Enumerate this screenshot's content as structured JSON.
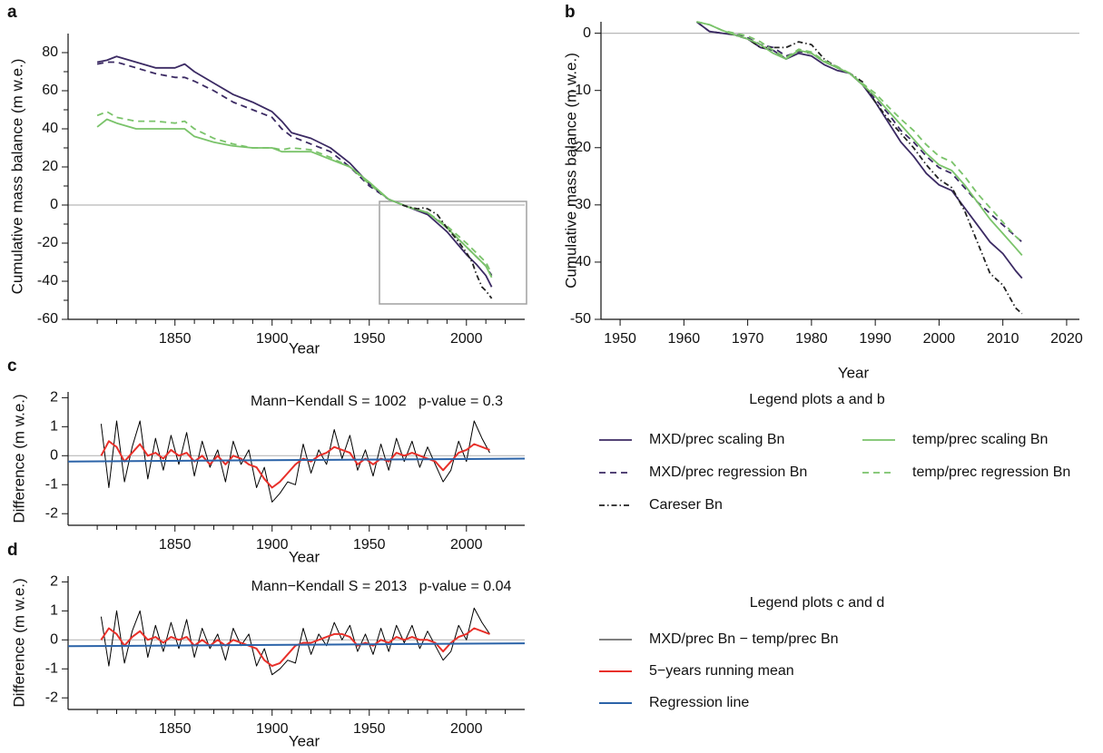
{
  "chart_data": [
    {
      "type": "line",
      "panel": "a",
      "xlabel": "Year",
      "ylabel": "Cumulative mass balance (m w.e.)",
      "xlim": [
        1795,
        2030
      ],
      "ylim": [
        -60,
        90
      ],
      "xticks": [
        1850,
        1900,
        1950,
        2000
      ],
      "xminorticks": [
        1810,
        1820,
        1830,
        1840,
        1860,
        1870,
        1880,
        1890,
        1910,
        1920,
        1930,
        1940,
        1960,
        1970,
        1980,
        1990,
        2010,
        2020
      ],
      "yticks": [
        -60,
        -40,
        -20,
        0,
        20,
        40,
        60,
        80
      ],
      "yminorticks": [
        -50,
        -30,
        -10,
        10,
        30,
        50,
        70
      ],
      "zero_line": true,
      "x": [
        1810,
        1815,
        1820,
        1830,
        1840,
        1850,
        1855,
        1860,
        1870,
        1880,
        1890,
        1900,
        1905,
        1910,
        1920,
        1930,
        1940,
        1950,
        1960,
        1970,
        1980,
        1990,
        2000,
        2005,
        2010,
        2013
      ],
      "series": [
        {
          "name": "MXD/prec scaling Bn",
          "color": "#3b2a63",
          "dash": "solid",
          "values": [
            75,
            76,
            78,
            75,
            72,
            72,
            74,
            70,
            64,
            58,
            54,
            49,
            44,
            38,
            35,
            30,
            22,
            11,
            3,
            -1,
            -5,
            -14,
            -26,
            -31,
            -37,
            -43
          ]
        },
        {
          "name": "MXD/prec regression Bn",
          "color": "#3b2a63",
          "dash": "dashed",
          "values": [
            74,
            75,
            75,
            72,
            69,
            67,
            67,
            65,
            60,
            54,
            50,
            46,
            40,
            36,
            32,
            28,
            20,
            10,
            3,
            -1,
            -4,
            -12,
            -22,
            -27,
            -32,
            -37
          ]
        },
        {
          "name": "temp/prec scaling Bn",
          "color": "#7ac36a",
          "dash": "solid",
          "values": [
            41,
            45,
            43,
            40,
            40,
            40,
            40,
            36,
            33,
            31,
            30,
            30,
            28,
            28,
            28,
            24,
            20,
            12,
            3,
            -1,
            -4,
            -12,
            -22,
            -27,
            -32,
            -38
          ]
        },
        {
          "name": "temp/prec regression Bn",
          "color": "#7ac36a",
          "dash": "dashed",
          "values": [
            47,
            49,
            46,
            44,
            44,
            43,
            44,
            40,
            35,
            32,
            30,
            30,
            29,
            30,
            29,
            25,
            20,
            11,
            3,
            -1,
            -4,
            -11,
            -20,
            -25,
            -30,
            -36
          ]
        },
        {
          "name": "Careser Bn",
          "color": "#222222",
          "dash": "dashdot",
          "x": [
            1967,
            1970,
            1975,
            1978,
            1980,
            1985,
            1990,
            1995,
            2000,
            2003,
            2005,
            2008,
            2010,
            2013
          ],
          "values": [
            0,
            -1,
            -2,
            -1.5,
            -2,
            -5,
            -12,
            -18,
            -25,
            -30,
            -36,
            -43,
            -45,
            -49
          ]
        }
      ]
    },
    {
      "type": "line",
      "panel": "b",
      "xlabel": "Year",
      "ylabel": "Cumulative mass balance (m w.e.)",
      "xlim": [
        1947,
        2022
      ],
      "ylim": [
        -50,
        2
      ],
      "xticks": [
        1950,
        1960,
        1970,
        1980,
        1990,
        2000,
        2010,
        2020
      ],
      "yticks": [
        -50,
        -40,
        -30,
        -20,
        -10,
        0
      ],
      "zero_line": true,
      "legend_title": "Legend plots a and b",
      "x": [
        1962,
        1964,
        1966,
        1968,
        1970,
        1972,
        1974,
        1976,
        1978,
        1980,
        1982,
        1984,
        1986,
        1988,
        1990,
        1992,
        1994,
        1996,
        1998,
        2000,
        2002,
        2004,
        2006,
        2008,
        2010,
        2012,
        2013
      ],
      "series": [
        {
          "name": "MXD/prec scaling Bn",
          "color": "#3b2a63",
          "dash": "solid",
          "values": [
            2,
            0.3,
            0,
            -0.3,
            -1,
            -2.5,
            -3,
            -4.5,
            -3.5,
            -4,
            -5.5,
            -6.5,
            -7,
            -9,
            -12,
            -15.5,
            -19,
            -21.5,
            -24.5,
            -26.5,
            -27.5,
            -30.5,
            -33.5,
            -36.5,
            -38.5,
            -41.5,
            -42.8
          ]
        },
        {
          "name": "MXD/prec regression Bn",
          "color": "#3b2a63",
          "dash": "dashed",
          "values": [
            2,
            0.3,
            0,
            -0.2,
            -0.8,
            -2,
            -2.5,
            -4,
            -3.2,
            -3.5,
            -5,
            -6,
            -7,
            -9,
            -11.5,
            -14,
            -17,
            -19,
            -21.5,
            -23.5,
            -24.5,
            -27,
            -29.5,
            -31.5,
            -33.5,
            -35.5,
            -36.5
          ]
        },
        {
          "name": "Careser Bn",
          "color": "#222222",
          "dash": "dashdot",
          "x": [
            1967,
            1970,
            1972,
            1974,
            1976,
            1978,
            1980,
            1982,
            1984,
            1986,
            1988,
            1990,
            1992,
            1994,
            1996,
            1998,
            2000,
            2002,
            2004,
            2006,
            2008,
            2010,
            2012,
            2013
          ],
          "values": [
            0,
            -1,
            -2.5,
            -2.5,
            -2.5,
            -1.5,
            -2,
            -4.5,
            -6,
            -7,
            -8.5,
            -12,
            -15,
            -17.5,
            -20,
            -23,
            -25.5,
            -27,
            -31,
            -36.5,
            -42,
            -44,
            -48,
            -49
          ]
        },
        {
          "name": "temp/prec scaling Bn",
          "color": "#7ac36a",
          "dash": "solid",
          "values": [
            2,
            1.5,
            0.5,
            -0.3,
            -1,
            -2,
            -3.5,
            -4.5,
            -3,
            -3.5,
            -5,
            -6,
            -7,
            -9,
            -11,
            -13.5,
            -16,
            -18.5,
            -21,
            -23,
            -24,
            -26.5,
            -29.5,
            -32.5,
            -35,
            -37.5,
            -38.8
          ]
        },
        {
          "name": "temp/prec regression Bn",
          "color": "#7ac36a",
          "dash": "dashed",
          "values": [
            2,
            1.5,
            0.5,
            0,
            -0.5,
            -1.5,
            -3,
            -4.3,
            -2.8,
            -3.3,
            -4.8,
            -5.8,
            -7,
            -8.8,
            -10.5,
            -12.8,
            -15,
            -17,
            -19.5,
            -21.5,
            -22.5,
            -25,
            -28,
            -30.5,
            -33,
            -35.5,
            -36.5
          ]
        }
      ]
    },
    {
      "type": "line",
      "panel": "c",
      "xlabel": "Year",
      "ylabel": "Difference (m w.e.)",
      "annotation": "Mann−Kendall S = 1002   p-value = 0.3",
      "xlim": [
        1795,
        2030
      ],
      "ylim": [
        -2.4,
        2.2
      ],
      "xticks": [
        1850,
        1900,
        1950,
        2000
      ],
      "xminorticks": [
        1810,
        1820,
        1830,
        1840,
        1860,
        1870,
        1880,
        1890,
        1910,
        1920,
        1930,
        1940,
        1960,
        1970,
        1980,
        1990,
        2010,
        2020
      ],
      "yticks": [
        -2,
        -1,
        0,
        1,
        2
      ],
      "zero_line": true,
      "x": [
        1812,
        1816,
        1820,
        1824,
        1828,
        1832,
        1836,
        1840,
        1844,
        1848,
        1852,
        1856,
        1860,
        1864,
        1868,
        1872,
        1876,
        1880,
        1884,
        1888,
        1892,
        1896,
        1900,
        1904,
        1908,
        1912,
        1916,
        1920,
        1924,
        1928,
        1932,
        1936,
        1940,
        1944,
        1948,
        1952,
        1956,
        1960,
        1964,
        1968,
        1972,
        1976,
        1980,
        1984,
        1988,
        1992,
        1996,
        2000,
        2004,
        2008,
        2012
      ],
      "series": [
        {
          "name": "MXD/prec Bn − temp/prec Bn",
          "color": "#000000",
          "dash": "solid",
          "width": 1,
          "values": [
            1.1,
            -1.1,
            1.2,
            -0.9,
            0.3,
            1.2,
            -0.8,
            0.6,
            -0.5,
            0.7,
            -0.3,
            0.8,
            -0.7,
            0.5,
            -0.4,
            0.2,
            -0.9,
            0.5,
            -0.3,
            0.2,
            -1.1,
            -0.4,
            -1.6,
            -1.3,
            -0.9,
            -1.0,
            0.4,
            -0.6,
            0.2,
            -0.3,
            0.9,
            -0.1,
            0.7,
            -0.5,
            0.2,
            -0.7,
            0.4,
            -0.5,
            0.6,
            -0.2,
            0.5,
            -0.4,
            0.3,
            -0.3,
            -0.9,
            -0.5,
            0.5,
            -0.2,
            1.2,
            0.6,
            0.1
          ]
        },
        {
          "name": "5−years running mean",
          "color": "#e8302a",
          "dash": "solid",
          "width": 2,
          "values": [
            0,
            0.5,
            0.3,
            -0.2,
            0.1,
            0.4,
            0,
            0.1,
            -0.1,
            0.2,
            0,
            0.1,
            -0.2,
            0,
            -0.3,
            0,
            -0.3,
            0,
            -0.1,
            -0.3,
            -0.4,
            -0.8,
            -1.1,
            -0.9,
            -0.6,
            -0.3,
            -0.1,
            -0.2,
            0,
            0.1,
            0.3,
            0.2,
            0.1,
            -0.3,
            -0.1,
            -0.3,
            -0.1,
            -0.2,
            0.1,
            0,
            0.1,
            0,
            -0.1,
            -0.2,
            -0.5,
            -0.2,
            0.1,
            0.2,
            0.4,
            0.3,
            0.2
          ]
        },
        {
          "name": "Regression line",
          "color": "#2b63a8",
          "dash": "solid",
          "width": 2,
          "x": [
            1795,
            2030
          ],
          "values": [
            -0.2,
            -0.1
          ]
        }
      ]
    },
    {
      "type": "line",
      "panel": "d",
      "xlabel": "Year",
      "ylabel": "Difference (m w.e.)",
      "annotation": "Mann−Kendall S = 2013   p-value = 0.04",
      "xlim": [
        1795,
        2030
      ],
      "ylim": [
        -2.4,
        2.2
      ],
      "xticks": [
        1850,
        1900,
        1950,
        2000
      ],
      "xminorticks": [
        1810,
        1820,
        1830,
        1840,
        1860,
        1870,
        1880,
        1890,
        1910,
        1920,
        1930,
        1940,
        1960,
        1970,
        1980,
        1990,
        2010,
        2020
      ],
      "yticks": [
        -2,
        -1,
        0,
        1,
        2
      ],
      "zero_line": true,
      "legend_title": "Legend plots c and d",
      "x": [
        1812,
        1816,
        1820,
        1824,
        1828,
        1832,
        1836,
        1840,
        1844,
        1848,
        1852,
        1856,
        1860,
        1864,
        1868,
        1872,
        1876,
        1880,
        1884,
        1888,
        1892,
        1896,
        1900,
        1904,
        1908,
        1912,
        1916,
        1920,
        1924,
        1928,
        1932,
        1936,
        1940,
        1944,
        1948,
        1952,
        1956,
        1960,
        1964,
        1968,
        1972,
        1976,
        1980,
        1984,
        1988,
        1992,
        1996,
        2000,
        2004,
        2008,
        2012
      ],
      "series": [
        {
          "name": "MXD/prec Bn − temp/prec Bn",
          "color": "#000000",
          "dash": "solid",
          "width": 1,
          "values": [
            0.8,
            -0.9,
            1.0,
            -0.8,
            0.3,
            1.0,
            -0.6,
            0.5,
            -0.4,
            0.6,
            -0.3,
            0.7,
            -0.6,
            0.4,
            -0.3,
            0.2,
            -0.7,
            0.4,
            -0.2,
            0.2,
            -0.9,
            -0.3,
            -1.2,
            -1.0,
            -0.7,
            -0.8,
            0.4,
            -0.5,
            0.2,
            -0.2,
            0.6,
            0,
            0.5,
            -0.4,
            0.2,
            -0.5,
            0.4,
            -0.4,
            0.5,
            -0.1,
            0.5,
            -0.3,
            0.3,
            -0.2,
            -0.7,
            -0.4,
            0.5,
            0,
            1.1,
            0.6,
            0.2
          ]
        },
        {
          "name": "5−years running mean",
          "color": "#e8302a",
          "dash": "solid",
          "width": 2,
          "values": [
            0,
            0.4,
            0.2,
            -0.2,
            0.1,
            0.3,
            0,
            0.1,
            -0.1,
            0.1,
            0,
            0.1,
            -0.2,
            0,
            -0.2,
            0,
            -0.2,
            0,
            -0.1,
            -0.2,
            -0.3,
            -0.7,
            -0.9,
            -0.8,
            -0.5,
            -0.2,
            -0.1,
            -0.1,
            0,
            0.1,
            0.2,
            0.2,
            0.1,
            -0.2,
            -0.1,
            -0.2,
            0,
            -0.1,
            0.1,
            0,
            0.1,
            0,
            0,
            -0.1,
            -0.4,
            -0.1,
            0.1,
            0.2,
            0.4,
            0.3,
            0.2
          ]
        },
        {
          "name": "Regression line",
          "color": "#2b63a8",
          "dash": "solid",
          "width": 2,
          "x": [
            1795,
            2030
          ],
          "values": [
            -0.22,
            -0.12
          ]
        }
      ]
    }
  ]
}
